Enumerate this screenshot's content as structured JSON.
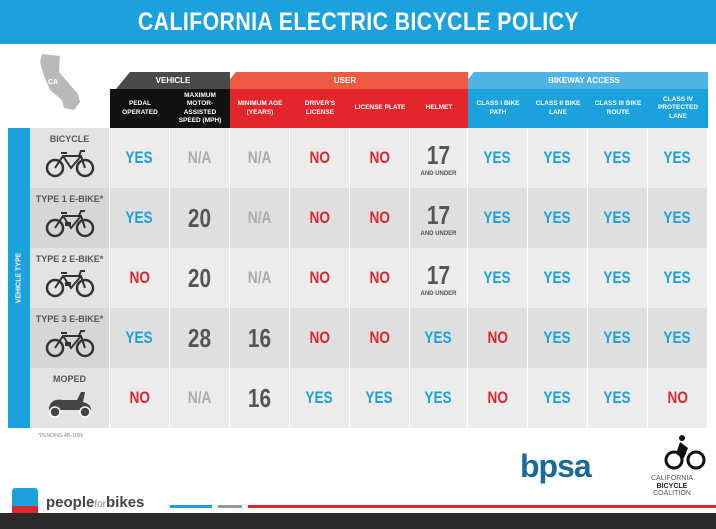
{
  "title": "CALIFORNIA ELECTRIC BICYCLE POLICY",
  "map_label": "CA",
  "groups": [
    {
      "label": "VEHICLE",
      "color": "#4a4a4a"
    },
    {
      "label": "USER",
      "color": "#ee5a3f"
    },
    {
      "label": "BIKEWAY ACCESS",
      "color": "#4fb3e6"
    }
  ],
  "columns": [
    {
      "label": "PEDAL OPERATED",
      "color": "#111111"
    },
    {
      "label": "MAXIMUM MOTOR-ASSISTED SPEED (MPH)",
      "color": "#111111"
    },
    {
      "label": "MINIMUM AGE (YEARS)",
      "color": "#e2262c"
    },
    {
      "label": "DRIVER'S LICENSE",
      "color": "#e2262c"
    },
    {
      "label": "LICENSE PLATE",
      "color": "#e2262c"
    },
    {
      "label": "HELMET",
      "color": "#e2262c"
    },
    {
      "label": "CLASS I BIKE PATH",
      "color": "#1ba1dc"
    },
    {
      "label": "CLASS II BIKE LANE",
      "color": "#1ba1dc"
    },
    {
      "label": "CLASS III BIKE ROUTE",
      "color": "#1ba1dc"
    },
    {
      "label": "CLASS IV PROTECTED LANE",
      "color": "#1ba1dc"
    }
  ],
  "vehicle_type_label": "VEHICLE TYPE",
  "rows": [
    {
      "label": "BICYCLE",
      "icon": "bicycle",
      "cells": [
        "YES",
        "N/A",
        "N/A",
        "NO",
        "NO",
        "17",
        "YES",
        "YES",
        "YES",
        "YES"
      ],
      "helmet_sub": "AND UNDER"
    },
    {
      "label": "TYPE 1 E-BIKE*",
      "icon": "e-bike",
      "cells": [
        "YES",
        "20",
        "N/A",
        "NO",
        "NO",
        "17",
        "YES",
        "YES",
        "YES",
        "YES"
      ],
      "helmet_sub": "AND UNDER"
    },
    {
      "label": "TYPE 2 E-BIKE*",
      "icon": "e-bike",
      "cells": [
        "NO",
        "20",
        "N/A",
        "NO",
        "NO",
        "17",
        "YES",
        "YES",
        "YES",
        "YES"
      ],
      "helmet_sub": "AND UNDER"
    },
    {
      "label": "TYPE 3 E-BIKE*",
      "icon": "e-bike",
      "cells": [
        "YES",
        "28",
        "16",
        "NO",
        "NO",
        "YES",
        "NO",
        "YES",
        "YES",
        "YES"
      ]
    },
    {
      "label": "MOPED",
      "icon": "moped",
      "cells": [
        "NO",
        "N/A",
        "16",
        "YES",
        "YES",
        "YES",
        "NO",
        "YES",
        "YES",
        "NO"
      ]
    }
  ],
  "footnote": "*PENDING AB-1096",
  "logos": {
    "bpsa": "bpsa",
    "cbc": "CALIFORNIA BICYCLE COALITION",
    "cbc_lines": [
      "CALIFORNIA",
      "BICYCLE",
      "COALITION"
    ],
    "pfb_people": "people",
    "pfb_for": "for",
    "pfb_bikes": "bikes"
  },
  "colors": {
    "yes": "#1ba1dc",
    "no": "#e2262c",
    "na": "#aaaaaa",
    "title_bar": "#1ba1dc"
  }
}
